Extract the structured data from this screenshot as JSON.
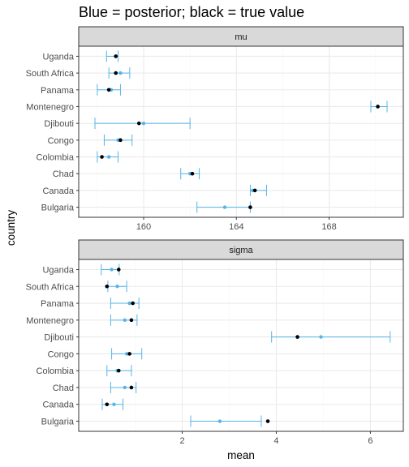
{
  "title": "Blue = posterior; black = true value",
  "y_axis_title": "country",
  "x_axis_title": "mean",
  "colors": {
    "posterior": "#56B4E9",
    "true_value": "#000000",
    "strip_fill": "#D9D9D9",
    "grid_major": "#EBEBEB",
    "grid_minor": "#F5F5F5",
    "panel_border": "#333333"
  },
  "chart_data": [
    {
      "type": "scatter",
      "panel": "mu",
      "xlim": [
        157.2,
        171.2
      ],
      "xticks": [
        160,
        164,
        168
      ],
      "xtick_labels": [
        "160",
        "164",
        "168"
      ],
      "categories": [
        "Uganda",
        "South Africa",
        "Panama",
        "Montenegro",
        "Djibouti",
        "Congo",
        "Colombia",
        "Chad",
        "Canada",
        "Bulgaria"
      ],
      "series": [
        {
          "name": "posterior",
          "mean": [
            158.8,
            159.0,
            158.6,
            170.1,
            160.0,
            158.9,
            158.5,
            162.0,
            164.7,
            163.5
          ],
          "lower": [
            158.4,
            158.5,
            158.0,
            169.8,
            157.9,
            158.3,
            158.0,
            161.6,
            164.6,
            162.3
          ],
          "upper": [
            158.9,
            159.4,
            159.0,
            170.5,
            162.0,
            159.5,
            158.9,
            162.4,
            165.3,
            164.6
          ]
        },
        {
          "name": "true value",
          "values": [
            158.8,
            158.8,
            158.5,
            170.1,
            159.8,
            159.0,
            158.2,
            162.1,
            164.8,
            164.6
          ]
        }
      ]
    },
    {
      "type": "scatter",
      "panel": "sigma",
      "xlim": [
        -0.2,
        6.7
      ],
      "xticks": [
        2,
        4,
        6
      ],
      "xtick_labels": [
        "2",
        "4",
        "6"
      ],
      "categories": [
        "Uganda",
        "South Africa",
        "Panama",
        "Montenegro",
        "Djibouti",
        "Congo",
        "Colombia",
        "Chad",
        "Canada",
        "Bulgaria"
      ],
      "series": [
        {
          "name": "posterior",
          "mean": [
            0.5,
            0.62,
            0.88,
            0.78,
            4.95,
            0.82,
            0.62,
            0.78,
            0.55,
            2.8
          ],
          "lower": [
            0.28,
            0.42,
            0.48,
            0.48,
            3.9,
            0.5,
            0.4,
            0.48,
            0.3,
            2.18
          ],
          "upper": [
            0.66,
            0.82,
            1.08,
            1.04,
            6.42,
            1.14,
            0.92,
            1.02,
            0.74,
            3.68
          ]
        },
        {
          "name": "true value",
          "values": [
            0.65,
            0.4,
            0.95,
            0.92,
            4.45,
            0.88,
            0.65,
            0.92,
            0.4,
            3.82
          ]
        }
      ]
    }
  ]
}
